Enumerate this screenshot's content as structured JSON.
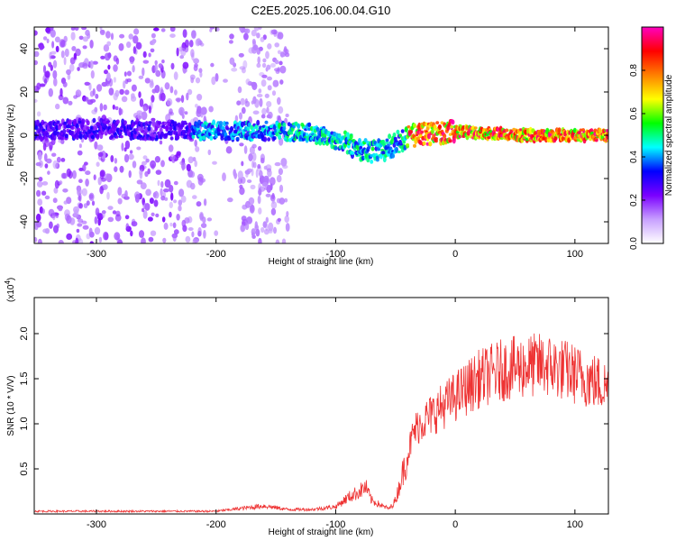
{
  "title": "C2E5.2025.106.00.04.G10",
  "chart_data": [
    {
      "type": "heatmap",
      "xlabel": "Height of straight line (km)",
      "ylabel": "Frequency (Hz)",
      "xlim": [
        -352,
        128
      ],
      "ylim": [
        -50,
        50
      ],
      "xticks": [
        -300,
        -200,
        -100,
        0,
        100
      ],
      "yticks": [
        -40,
        -20,
        0,
        20,
        40
      ],
      "colorbar": {
        "label": "Normalized spectral amplitude",
        "range": [
          0,
          1
        ],
        "ticks": [
          "0.0",
          "0.2",
          "0.4",
          "0.6",
          "0.8"
        ],
        "tick_values": [
          0,
          0.2,
          0.4,
          0.6,
          0.8
        ],
        "colors": [
          "#ffffff",
          "#c8a0ff",
          "#7a00ff",
          "#0000ff",
          "#00ffff",
          "#00ff00",
          "#ffff00",
          "#ff8000",
          "#ff0000",
          "#ff00c0"
        ]
      },
      "ridge": {
        "x": [
          -352,
          -300,
          -250,
          -200,
          -150,
          -120,
          -100,
          -85,
          -70,
          -60,
          -50,
          -40,
          -30,
          -20,
          -10,
          0,
          20,
          60,
          100,
          128
        ],
        "y": [
          2,
          3,
          2,
          2,
          2,
          1,
          -2,
          -5,
          -8,
          -7,
          -4,
          -1,
          0,
          1,
          1,
          2,
          1,
          0,
          0,
          0
        ]
      },
      "noise_band": {
        "xmin": -352,
        "xmax": -140
      }
    },
    {
      "type": "line",
      "xlabel": "Height of straight line (km)",
      "ylabel": "SNR (10 * V/V)",
      "yscale_label": "(x10",
      "yscale_exp": "4",
      "xlim": [
        -352,
        128
      ],
      "ylim": [
        0,
        24000
      ],
      "xticks": [
        -300,
        -200,
        -100,
        0,
        100
      ],
      "yticks": [
        5000,
        10000,
        15000,
        20000
      ],
      "ytick_labels": [
        "0.5",
        "1.0",
        "1.5",
        "2.0"
      ],
      "color": "#ee3333",
      "x": [
        -352,
        -300,
        -250,
        -200,
        -180,
        -160,
        -140,
        -120,
        -100,
        -90,
        -80,
        -75,
        -70,
        -60,
        -55,
        -50,
        -45,
        -40,
        -35,
        -30,
        -25,
        -20,
        -15,
        -10,
        -5,
        0,
        10,
        20,
        30,
        40,
        50,
        60,
        70,
        80,
        90,
        95,
        100,
        110,
        120,
        128
      ],
      "y": [
        300,
        300,
        300,
        300,
        600,
        900,
        500,
        500,
        800,
        1800,
        2500,
        3000,
        1500,
        800,
        600,
        1500,
        4000,
        6500,
        9000,
        10000,
        10500,
        11000,
        11500,
        12000,
        12500,
        13000,
        14000,
        15000,
        15500,
        16000,
        16200,
        16400,
        16500,
        16400,
        16000,
        15800,
        15500,
        15000,
        14500,
        14000
      ]
    }
  ]
}
